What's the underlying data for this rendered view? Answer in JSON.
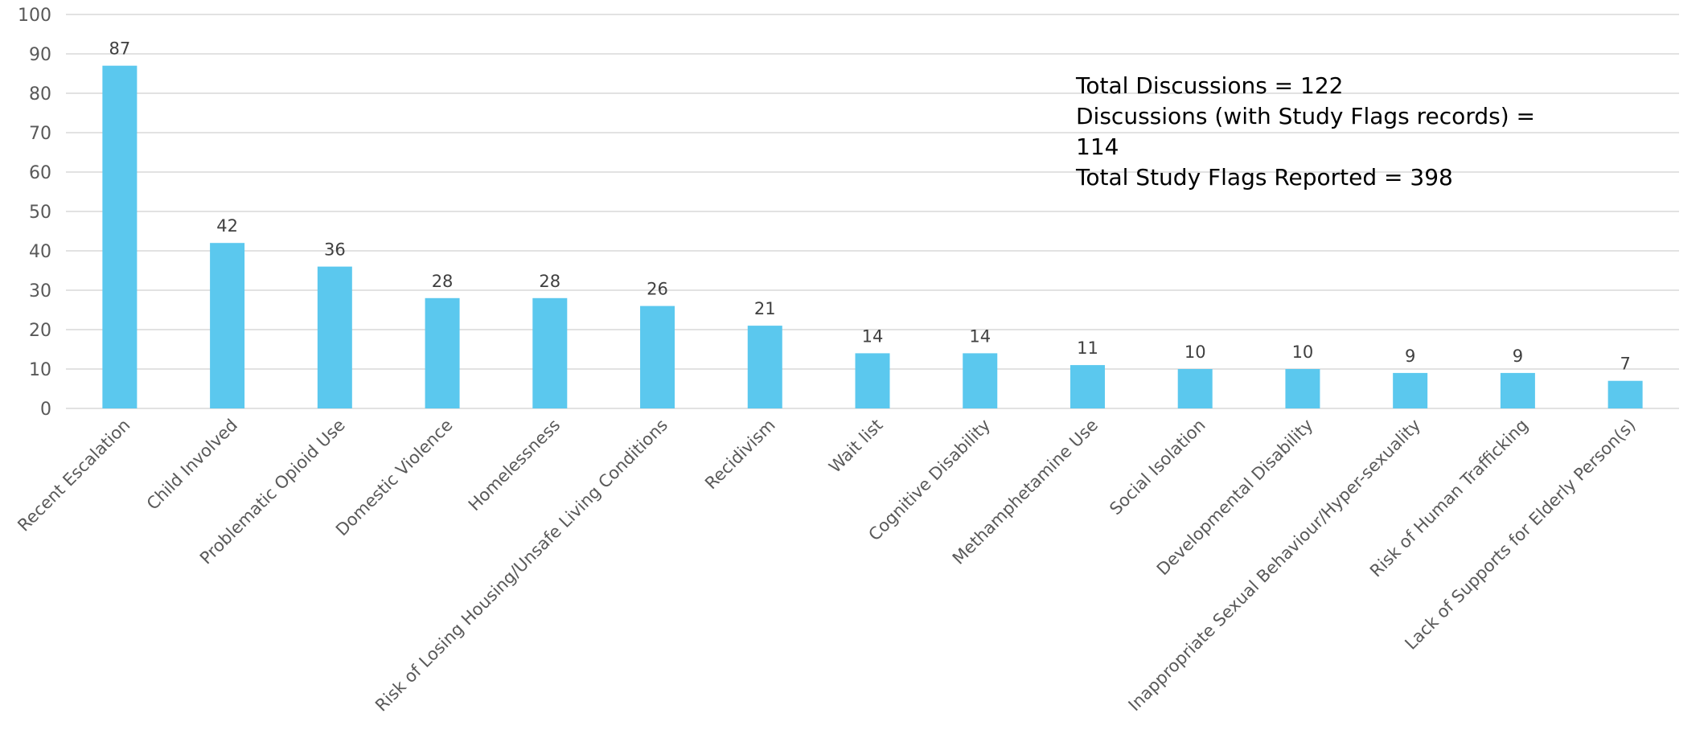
{
  "chart_data": {
    "type": "bar",
    "categories": [
      "Recent Escalation",
      "Child Involved",
      "Problematic Opioid Use",
      "Domestic Violence",
      "Homelessness",
      "Risk of Losing Housing/Unsafe Living Conditions",
      "Recidivism",
      "Wait list",
      "Cognitive Disability",
      "Methamphetamine Use",
      "Social Isolation",
      "Developmental Disability",
      "Inappropriate Sexual Behaviour/Hyper-sexuality",
      "Risk of Human Trafficking",
      "Lack of Supports for Elderly Person(s)"
    ],
    "values": [
      87,
      42,
      36,
      28,
      28,
      26,
      21,
      14,
      14,
      11,
      10,
      10,
      9,
      9,
      7
    ],
    "ylim": [
      0,
      100
    ],
    "yticks": [
      0,
      10,
      20,
      30,
      40,
      50,
      60,
      70,
      80,
      90,
      100
    ],
    "grid": true,
    "bar_color": "#5BC8EE",
    "gridline_color": "#D9D9D9",
    "annotations": [
      "Total Discussions = 122",
      "Discussions (with Study Flags records) = 114",
      "Total Study Flags Reported = 398"
    ]
  }
}
